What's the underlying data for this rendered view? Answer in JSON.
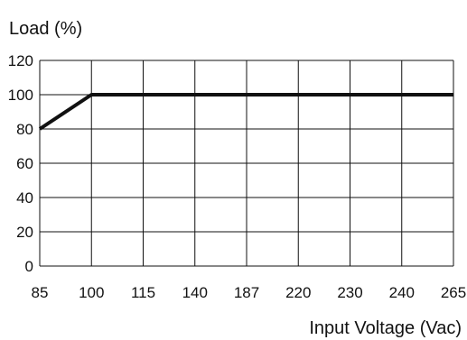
{
  "chart_data": {
    "type": "line",
    "title": "",
    "ylabel": "Load (%)",
    "xlabel": "Input Voltage (Vac)",
    "x_categories": [
      "85",
      "100",
      "115",
      "140",
      "187",
      "220",
      "230",
      "240",
      "265"
    ],
    "y_ticks": [
      0,
      20,
      40,
      60,
      80,
      100,
      120
    ],
    "ylim": [
      0,
      120
    ],
    "grid": true,
    "series": [
      {
        "points": [
          {
            "x": "85",
            "y": 80
          },
          {
            "x": "100",
            "y": 100
          },
          {
            "x": "265",
            "y": 100
          }
        ]
      }
    ]
  }
}
